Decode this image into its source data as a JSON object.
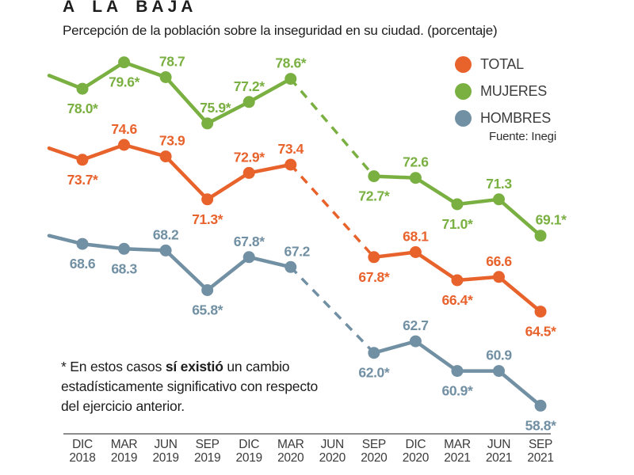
{
  "header": {
    "title": "A LA BAJA",
    "subtitle": "Percepción de la población sobre la inseguridad en su ciudad. (porcentaje)"
  },
  "legend": {
    "items": [
      {
        "label": "TOTAL",
        "color": "#E8622C"
      },
      {
        "label": "MUJERES",
        "color": "#7AB042"
      },
      {
        "label": "HOMBRES",
        "color": "#7290A3"
      }
    ],
    "source": "Fuente: Inegi"
  },
  "footnote": {
    "prefix": "* En estos casos ",
    "bold": "sí existió",
    "suffix": " un cambio estadísticamente significativo con respecto del ejercicio anterior."
  },
  "chart_data": {
    "type": "line",
    "title": "A LA BAJA",
    "subtitle": "Percepción de la población sobre la inseguridad en su ciudad. (porcentaje)",
    "categories": [
      "DIC 2018",
      "MAR 2019",
      "JUN 2019",
      "SEP 2019",
      "DIC 2019",
      "MAR 2020",
      "JUN 2020",
      "SEP 2020",
      "DIC 2020",
      "MAR 2021",
      "JUN 2021",
      "SEP 2021"
    ],
    "gap_category": "JUN 2020",
    "dashed_between": [
      "MAR 2020",
      "SEP 2020"
    ],
    "ylim": [
      56,
      81
    ],
    "y_axis_shown": false,
    "grid": false,
    "legend_position": "top-right",
    "series": [
      {
        "name": "MUJERES",
        "color": "#7AB042",
        "lead_in_value": 78.8,
        "values": [
          78.0,
          79.6,
          78.7,
          75.9,
          77.2,
          78.6,
          null,
          72.7,
          72.6,
          71.0,
          71.3,
          69.1
        ],
        "labels": [
          "78.0*",
          "79.6*",
          "78.7",
          "75.9*",
          "77.2*",
          "78.6*",
          null,
          "72.7*",
          "72.6",
          "71.0*",
          "71.3",
          "69.1*"
        ],
        "label_pos": [
          "below",
          "below",
          "above",
          "above",
          "above",
          "above",
          null,
          "below",
          "above",
          "below",
          "above",
          "above"
        ],
        "label_dx": [
          0,
          0,
          8,
          10,
          0,
          0,
          null,
          0,
          0,
          0,
          0,
          13
        ]
      },
      {
        "name": "TOTAL",
        "color": "#E8622C",
        "lead_in_value": 74.4,
        "values": [
          73.7,
          74.6,
          73.9,
          71.3,
          72.9,
          73.4,
          null,
          67.8,
          68.1,
          66.4,
          66.6,
          64.5
        ],
        "labels": [
          "73.7*",
          "74.6",
          "73.9",
          "71.3*",
          "72.9*",
          "73.4",
          null,
          "67.8*",
          "68.1",
          "66.4*",
          "66.6",
          "64.5*"
        ],
        "label_pos": [
          "below",
          "above",
          "above",
          "below",
          "above",
          "above",
          null,
          "below",
          "above",
          "below",
          "above",
          "below"
        ],
        "label_dx": [
          0,
          0,
          8,
          0,
          0,
          0,
          null,
          0,
          0,
          0,
          0,
          0
        ]
      },
      {
        "name": "HOMBRES",
        "color": "#7290A3",
        "lead_in_value": 69.1,
        "values": [
          68.6,
          68.3,
          68.2,
          65.8,
          67.8,
          67.2,
          null,
          62.0,
          62.7,
          60.9,
          60.9,
          58.8
        ],
        "labels": [
          "68.6",
          "68.3",
          "68.2",
          "65.8*",
          "67.8*",
          "67.2",
          null,
          "62.0*",
          "62.7",
          "60.9*",
          "60.9",
          "58.8*"
        ],
        "label_pos": [
          "below",
          "below",
          "above",
          "below",
          "above",
          "above",
          null,
          "below",
          "above",
          "below",
          "above",
          "below"
        ],
        "label_dx": [
          0,
          0,
          0,
          0,
          0,
          8,
          null,
          0,
          0,
          0,
          0,
          0
        ]
      }
    ]
  }
}
